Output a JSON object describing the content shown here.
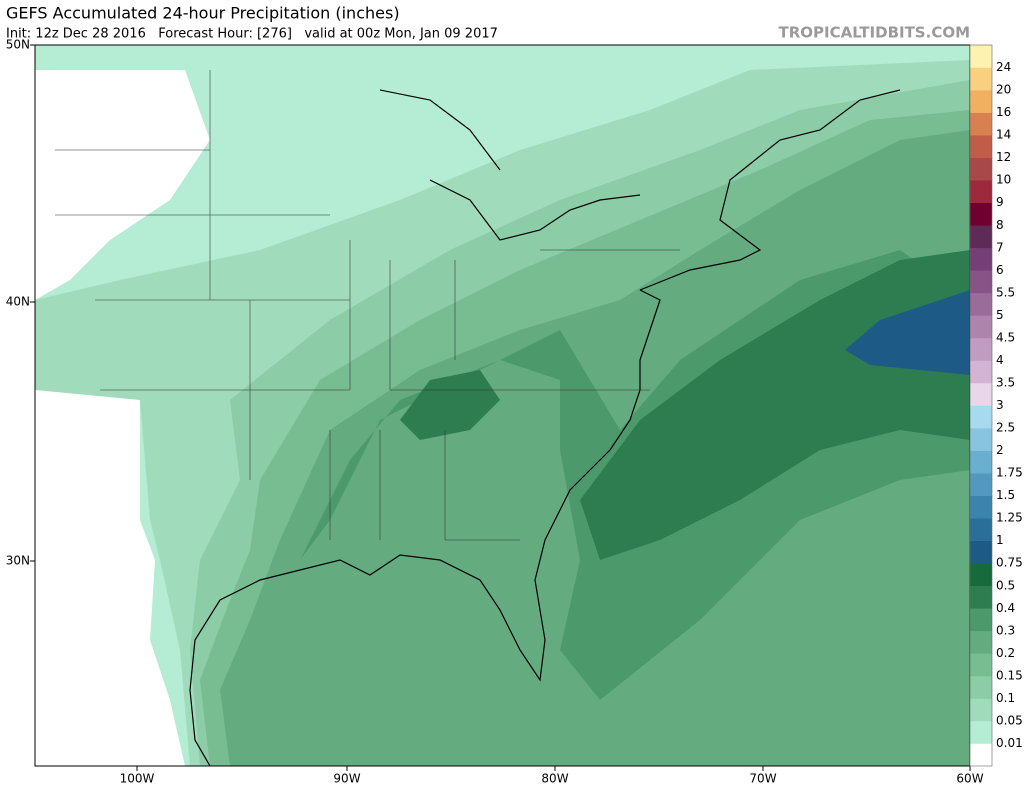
{
  "header": {
    "title": "GEFS Accumulated 24-hour Precipitation (inches)",
    "subtitle": "Init: 12z Dec 28 2016   Forecast Hour: [276]   valid at 00z Mon, Jan 09 2017",
    "source": "TROPICALTIDBITS.COM"
  },
  "map": {
    "lat_labels": [
      "50N",
      "40N",
      "30N"
    ],
    "lon_labels": [
      "100W",
      "90W",
      "80W",
      "70W",
      "60W"
    ]
  },
  "colorbar": {
    "labels": [
      "0.01",
      "0.05",
      "0.1",
      "0.15",
      "0.2",
      "0.3",
      "0.4",
      "0.5",
      "0.75",
      "1",
      "1.25",
      "1.5",
      "1.75",
      "2",
      "2.5",
      "3",
      "3.5",
      "4",
      "4.5",
      "5",
      "5.5",
      "6",
      "7",
      "8",
      "9",
      "10",
      "12",
      "14",
      "16",
      "20",
      "24"
    ],
    "colors": [
      "#ffffff",
      "#b4ecd4",
      "#a0dcbc",
      "#8ccca6",
      "#78bc92",
      "#64ac80",
      "#4c9a6c",
      "#2e7d50",
      "#176a3c",
      "#1e5a86",
      "#2a6e9a",
      "#3c84ae",
      "#5298c0",
      "#6aaed0",
      "#88c4e0",
      "#a8daef",
      "#ead6ea",
      "#d4b4d4",
      "#c09cc0",
      "#ac84ac",
      "#9a6c9a",
      "#885488",
      "#763e76",
      "#5e2a56",
      "#700030",
      "#9c2a3c",
      "#a84848",
      "#c05c48",
      "#d88050",
      "#f0b060",
      "#f8d080",
      "#fef2b0"
    ]
  }
}
